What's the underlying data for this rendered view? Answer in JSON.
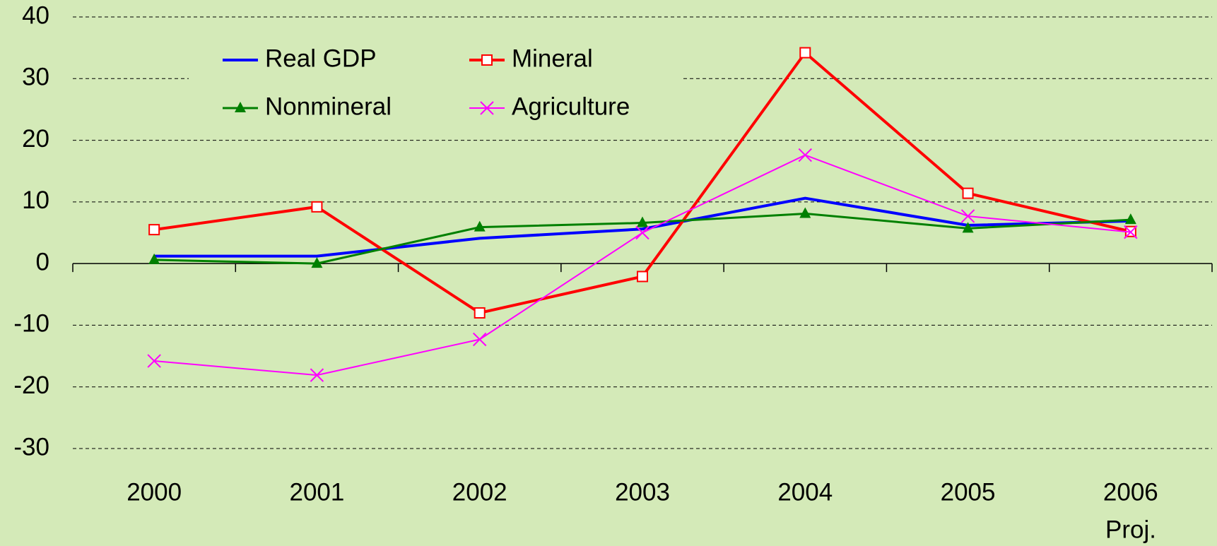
{
  "chart_data": {
    "type": "line",
    "categories": [
      "2000",
      "2001",
      "2002",
      "2003",
      "2004",
      "2005",
      "2006"
    ],
    "annotations": [
      "Proj."
    ],
    "series": [
      {
        "name": "Real GDP",
        "color": "#0000ff",
        "marker": "none",
        "values": [
          1.2,
          1.2,
          4.1,
          5.6,
          10.6,
          6.2,
          6.9
        ]
      },
      {
        "name": "Mineral",
        "color": "#ff0000",
        "marker": "square",
        "values": [
          5.5,
          9.2,
          -8.0,
          -2.1,
          34.2,
          11.4,
          5.2
        ]
      },
      {
        "name": "Nonmineral",
        "color": "#008000",
        "marker": "triangle",
        "values": [
          0.6,
          0.0,
          5.9,
          6.6,
          8.1,
          5.7,
          7.1
        ]
      },
      {
        "name": "Agriculture",
        "color": "#ff00ff",
        "marker": "x",
        "values": [
          -15.8,
          -18.1,
          -12.3,
          5.0,
          17.6,
          7.7,
          5.1
        ]
      }
    ],
    "ylim": [
      -30,
      40
    ],
    "yticks": [
      -30,
      -20,
      -10,
      0,
      10,
      20,
      30,
      40
    ],
    "grid": true,
    "legend": "upper left"
  }
}
